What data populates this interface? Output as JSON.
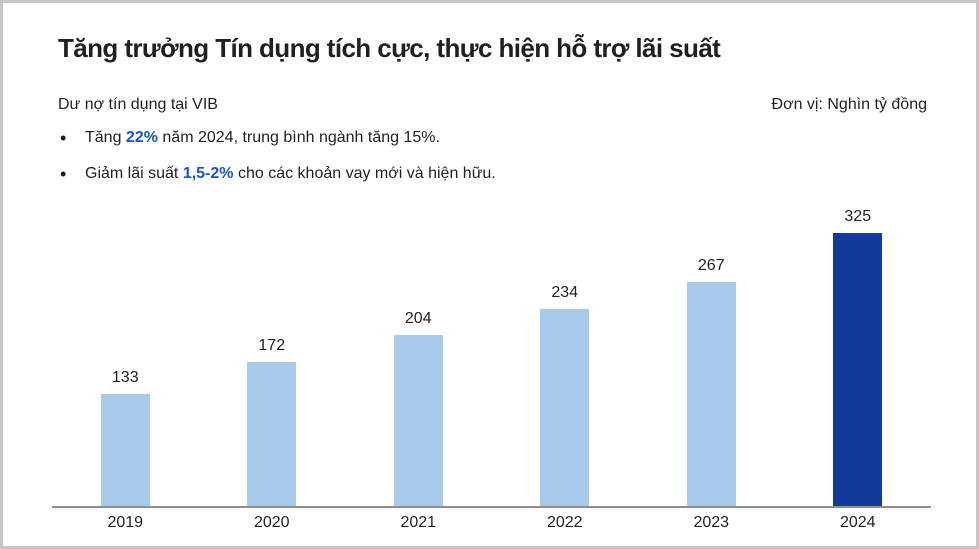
{
  "card": {
    "title": "Tăng trưởng Tín dụng tích cực, thực hiện hỗ trợ lãi suất",
    "subtitle": "Dư nợ tín dụng tại VIB",
    "unit_label": "Đơn vị: Nghìn tỷ đồng",
    "bullets": [
      {
        "prefix": "Tăng ",
        "highlight": "22%",
        "suffix": " năm 2024, trung bình ngành tăng 15%."
      },
      {
        "prefix": "Giảm lãi suất ",
        "highlight": "1,5-2%",
        "suffix": " cho các khoản vay mới và hiện hữu."
      }
    ]
  },
  "colors": {
    "bar_default": "#a7c9ea",
    "bar_highlight": "#123a9a",
    "accent_text": "#1757c2",
    "axis": "#8f8f8f",
    "border": "#c6c6c6",
    "text": "#1f1f25"
  },
  "chart_data": {
    "type": "bar",
    "categories": [
      "2019",
      "2020",
      "2021",
      "2022",
      "2023",
      "2024"
    ],
    "values": [
      133,
      172,
      204,
      234,
      267,
      325
    ],
    "highlight_index": 5,
    "title": "Tăng trưởng Tín dụng tích cực, thực hiện hỗ trợ lãi suất",
    "xlabel": "",
    "ylabel": "Nghìn tỷ đồng",
    "ylim": [
      0,
      325
    ],
    "grid": false,
    "legend": "none",
    "data_labels": true
  }
}
